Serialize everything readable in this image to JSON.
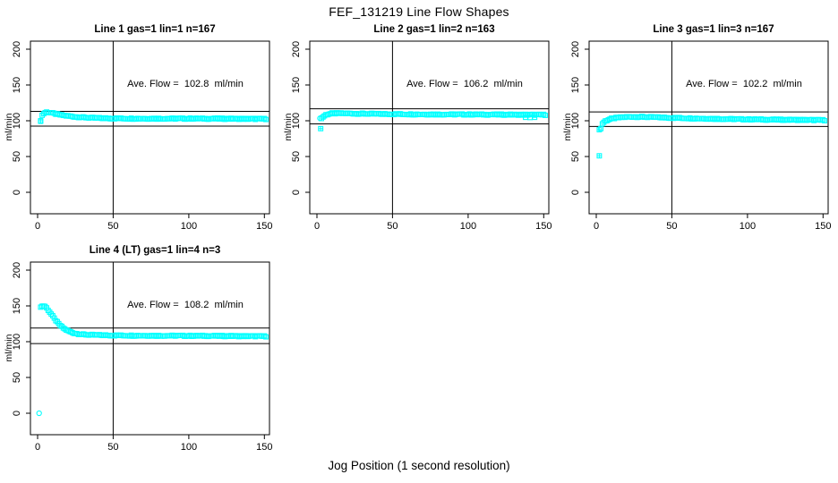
{
  "page": {
    "title": "FEF_131219  Line Flow Shapes",
    "xlabel": "Jog Position (1 second resolution)",
    "ylabel": "ml/min"
  },
  "chart_data": [
    {
      "type": "scatter",
      "title": "Line 1 gas=1 lin=1 n=167",
      "annotation": "Ave. Flow =  102.8  ml/min",
      "ave_flow": 102.8,
      "n": 167,
      "marker": "open-square",
      "marker_color": "#00FFFF",
      "axis_color": "#000000",
      "xlim": [
        -6,
        158
      ],
      "ylim": [
        -30,
        211
      ],
      "x_ticks": [
        0,
        50,
        100,
        150
      ],
      "y_ticks": [
        0,
        50,
        100,
        150,
        200
      ],
      "vline_x": 50,
      "hlines": [
        113.1,
        92.5
      ],
      "outliers": [
        {
          "x": 2,
          "y": 100,
          "marker": "square-plus"
        }
      ],
      "curve_points": [
        [
          2,
          100
        ],
        [
          3,
          107.5
        ],
        [
          4,
          110
        ],
        [
          5,
          111.5
        ],
        [
          6,
          112
        ],
        [
          8,
          111.5
        ],
        [
          10,
          110.5
        ],
        [
          12,
          109.5
        ],
        [
          15,
          108.2
        ],
        [
          18,
          107.2
        ],
        [
          22,
          106.2
        ],
        [
          26,
          105.3
        ],
        [
          30,
          104.7
        ],
        [
          35,
          104.1
        ],
        [
          40,
          103.7
        ],
        [
          50,
          103.3
        ],
        [
          60,
          103.1
        ],
        [
          80,
          103
        ],
        [
          100,
          103
        ],
        [
          120,
          102.9
        ],
        [
          151,
          102.5
        ]
      ]
    },
    {
      "type": "scatter",
      "title": "Line 2 gas=1 lin=2 n=163",
      "annotation": "Ave. Flow =  106.2  ml/min",
      "ave_flow": 106.2,
      "n": 163,
      "marker": "open-square",
      "marker_color": "#00FFFF",
      "axis_color": "#000000",
      "xlim": [
        -6,
        158
      ],
      "ylim": [
        -30,
        211
      ],
      "x_ticks": [
        0,
        50,
        100,
        150
      ],
      "y_ticks": [
        0,
        50,
        100,
        150,
        200
      ],
      "vline_x": 50,
      "hlines": [
        116.8,
        95.6
      ],
      "outliers": [
        {
          "x": 2,
          "y": 103.5,
          "marker": "circle"
        },
        {
          "x": 2.5,
          "y": 89,
          "marker": "square-plus"
        },
        {
          "x": 138,
          "y": 104.8,
          "marker": "square"
        },
        {
          "x": 141,
          "y": 104.5,
          "marker": "square"
        },
        {
          "x": 144,
          "y": 104.8,
          "marker": "square"
        }
      ],
      "curve_points": [
        [
          3,
          103
        ],
        [
          4,
          105.5
        ],
        [
          5,
          107
        ],
        [
          6,
          108.3
        ],
        [
          8,
          109.5
        ],
        [
          10,
          110.2
        ],
        [
          14,
          110.4
        ],
        [
          20,
          110.2
        ],
        [
          30,
          109.8
        ],
        [
          40,
          109.5
        ],
        [
          50,
          109.3
        ],
        [
          70,
          109
        ],
        [
          100,
          108.8
        ],
        [
          120,
          108.6
        ],
        [
          151,
          108.3
        ]
      ]
    },
    {
      "type": "scatter",
      "title": "Line 3 gas=1 lin=3 n=167",
      "annotation": "Ave. Flow =  102.2  ml/min",
      "ave_flow": 102.2,
      "n": 167,
      "marker": "open-square",
      "marker_color": "#00FFFF",
      "axis_color": "#000000",
      "xlim": [
        -6,
        158
      ],
      "ylim": [
        -30,
        211
      ],
      "x_ticks": [
        0,
        50,
        100,
        150
      ],
      "y_ticks": [
        0,
        50,
        100,
        150,
        200
      ],
      "vline_x": 50,
      "hlines": [
        112.4,
        92.0
      ],
      "outliers": [
        {
          "x": 2,
          "y": 51,
          "marker": "square-plus"
        },
        {
          "x": 2,
          "y": 87.5,
          "marker": "square-plus"
        },
        {
          "x": 3,
          "y": 89,
          "marker": "square"
        }
      ],
      "curve_points": [
        [
          3.5,
          94.5
        ],
        [
          4,
          96
        ],
        [
          5,
          98
        ],
        [
          6,
          99.5
        ],
        [
          8,
          101.5
        ],
        [
          10,
          102.8
        ],
        [
          14,
          104.2
        ],
        [
          18,
          105
        ],
        [
          24,
          105.5
        ],
        [
          30,
          105.4
        ],
        [
          36,
          105
        ],
        [
          42,
          104.6
        ],
        [
          50,
          104.1
        ],
        [
          60,
          103.6
        ],
        [
          70,
          103.1
        ],
        [
          80,
          102.7
        ],
        [
          90,
          102.3
        ],
        [
          100,
          102
        ],
        [
          110,
          101.7
        ],
        [
          120,
          101.5
        ],
        [
          135,
          101.2
        ],
        [
          151,
          100.8
        ]
      ]
    },
    {
      "type": "scatter",
      "title": "Line 4 (LT) gas=1 lin=4 n=3",
      "annotation": "Ave. Flow =  108.2  ml/min",
      "ave_flow": 108.2,
      "n": 3,
      "marker": "open-square",
      "marker_color": "#00FFFF",
      "axis_color": "#000000",
      "xlim": [
        -6,
        158
      ],
      "ylim": [
        -30,
        211
      ],
      "x_ticks": [
        0,
        50,
        100,
        150
      ],
      "y_ticks": [
        0,
        50,
        100,
        150,
        200
      ],
      "vline_x": 50,
      "hlines": [
        119.0,
        97.4
      ],
      "outliers": [
        {
          "x": 1,
          "y": 0,
          "marker": "circle"
        }
      ],
      "curve_points": [
        [
          2,
          149
        ],
        [
          3,
          149.5
        ],
        [
          4,
          150
        ],
        [
          5,
          149.3
        ],
        [
          6,
          147
        ],
        [
          7,
          144.3
        ],
        [
          8,
          141.5
        ],
        [
          9,
          138.5
        ],
        [
          10,
          135.5
        ],
        [
          11,
          132.5
        ],
        [
          12,
          129.8
        ],
        [
          13,
          127.2
        ],
        [
          14,
          124.8
        ],
        [
          15,
          122.7
        ],
        [
          16,
          120.8
        ],
        [
          17,
          119.2
        ],
        [
          18,
          117.7
        ],
        [
          19,
          116.4
        ],
        [
          20,
          115.2
        ],
        [
          22,
          113.4
        ],
        [
          24,
          112.1
        ],
        [
          26,
          111.2
        ],
        [
          28,
          110.5
        ],
        [
          30,
          110.1
        ],
        [
          34,
          109.6
        ],
        [
          38,
          109.3
        ],
        [
          44,
          109
        ],
        [
          50,
          108.8
        ],
        [
          60,
          108.6
        ],
        [
          80,
          108.4
        ],
        [
          100,
          108.2
        ],
        [
          120,
          108
        ],
        [
          135,
          107.8
        ],
        [
          151,
          107.5
        ]
      ]
    }
  ]
}
